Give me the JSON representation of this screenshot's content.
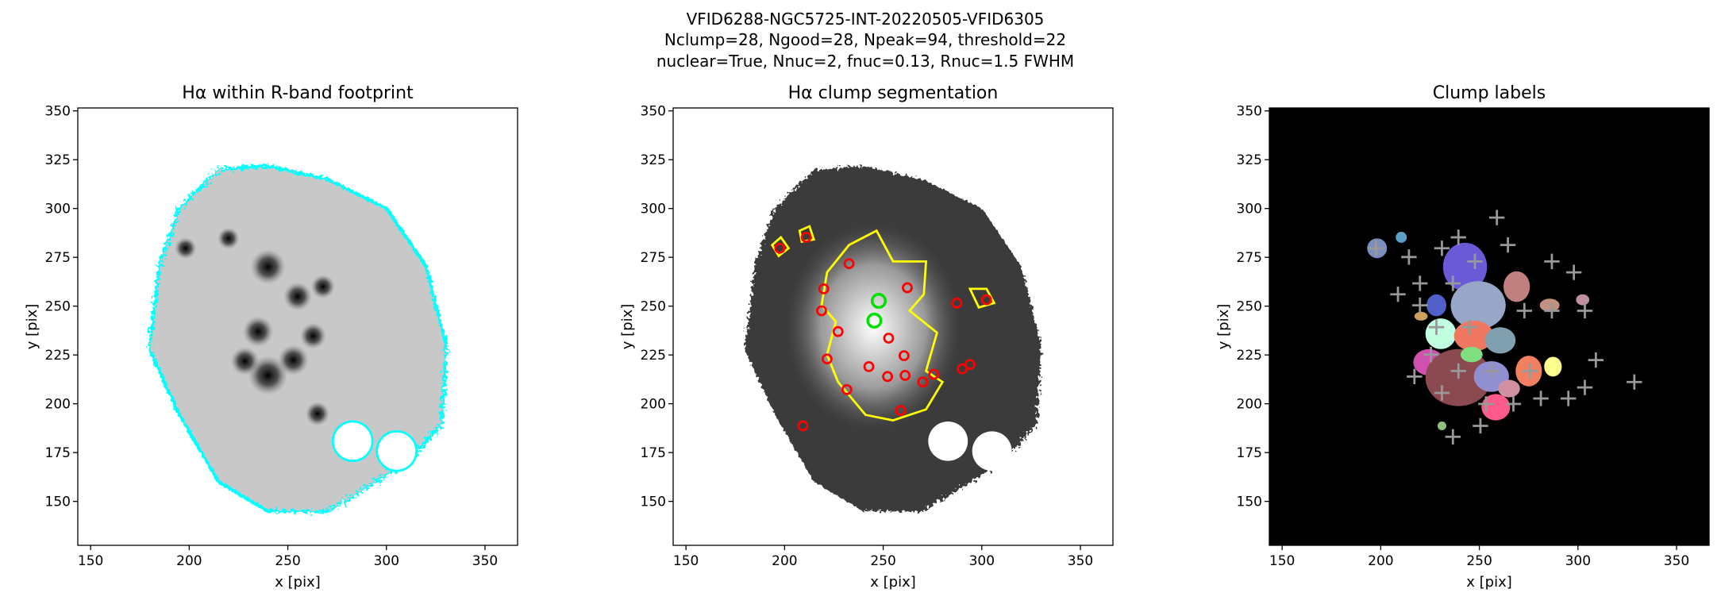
{
  "figure": {
    "title_lines": [
      "VFID6288-NGC5725-INT-20220505-VFID6305",
      "Nclump=28, Ngood=28, Npeak=94, threshold=22",
      "nuclear=True, Nnuc=2, fnuc=0.13, Rnuc=1.5 FWHM"
    ]
  },
  "chart_data": [
    {
      "type": "image",
      "title": "Hα within R-band footprint",
      "xlabel": "x [pix]",
      "ylabel": "y [pix]",
      "xlim": [
        143.5,
        366.5
      ],
      "ylim": [
        127.5,
        351.5
      ],
      "xticks": [
        150,
        200,
        250,
        300,
        350
      ],
      "yticks": [
        150,
        175,
        200,
        225,
        250,
        275,
        300,
        325,
        350
      ]
    },
    {
      "type": "image",
      "title": "Hα clump segmentation",
      "xlabel": "x [pix]",
      "ylabel": "y [pix]",
      "xlim": [
        143.5,
        366.5
      ],
      "ylim": [
        127.5,
        351.5
      ],
      "xticks": [
        150,
        200,
        250,
        300,
        350
      ],
      "yticks": [
        150,
        175,
        200,
        225,
        250,
        275,
        300,
        325,
        350
      ]
    },
    {
      "type": "image",
      "title": "Clump labels",
      "xlabel": "x [pix]",
      "ylabel": "y [pix]",
      "xlim": [
        143.5,
        366.5
      ],
      "ylim": [
        127.5,
        351.5
      ],
      "xticks": [
        150,
        200,
        250,
        300,
        350
      ],
      "yticks": [
        150,
        175,
        200,
        225,
        250,
        275,
        300,
        325,
        350
      ]
    }
  ]
}
